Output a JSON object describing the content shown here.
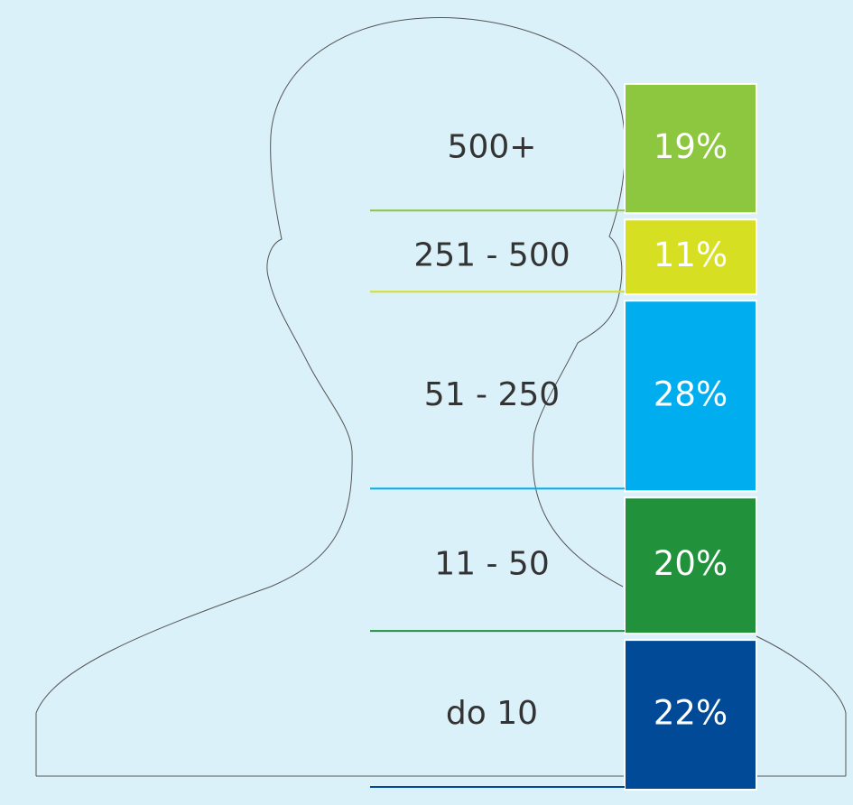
{
  "chart_data": {
    "type": "stacked-column",
    "categories": [
      "500+",
      "251 - 500",
      "51 - 250",
      "11 - 50",
      "do 10"
    ],
    "values": [
      19,
      11,
      28,
      20,
      22
    ],
    "value_labels": [
      "19%",
      "11%",
      "28%",
      "20%",
      "22%"
    ],
    "colors": [
      "#8dc63f",
      "#d7df23",
      "#00aeef",
      "#21913c",
      "#004a97"
    ]
  }
}
